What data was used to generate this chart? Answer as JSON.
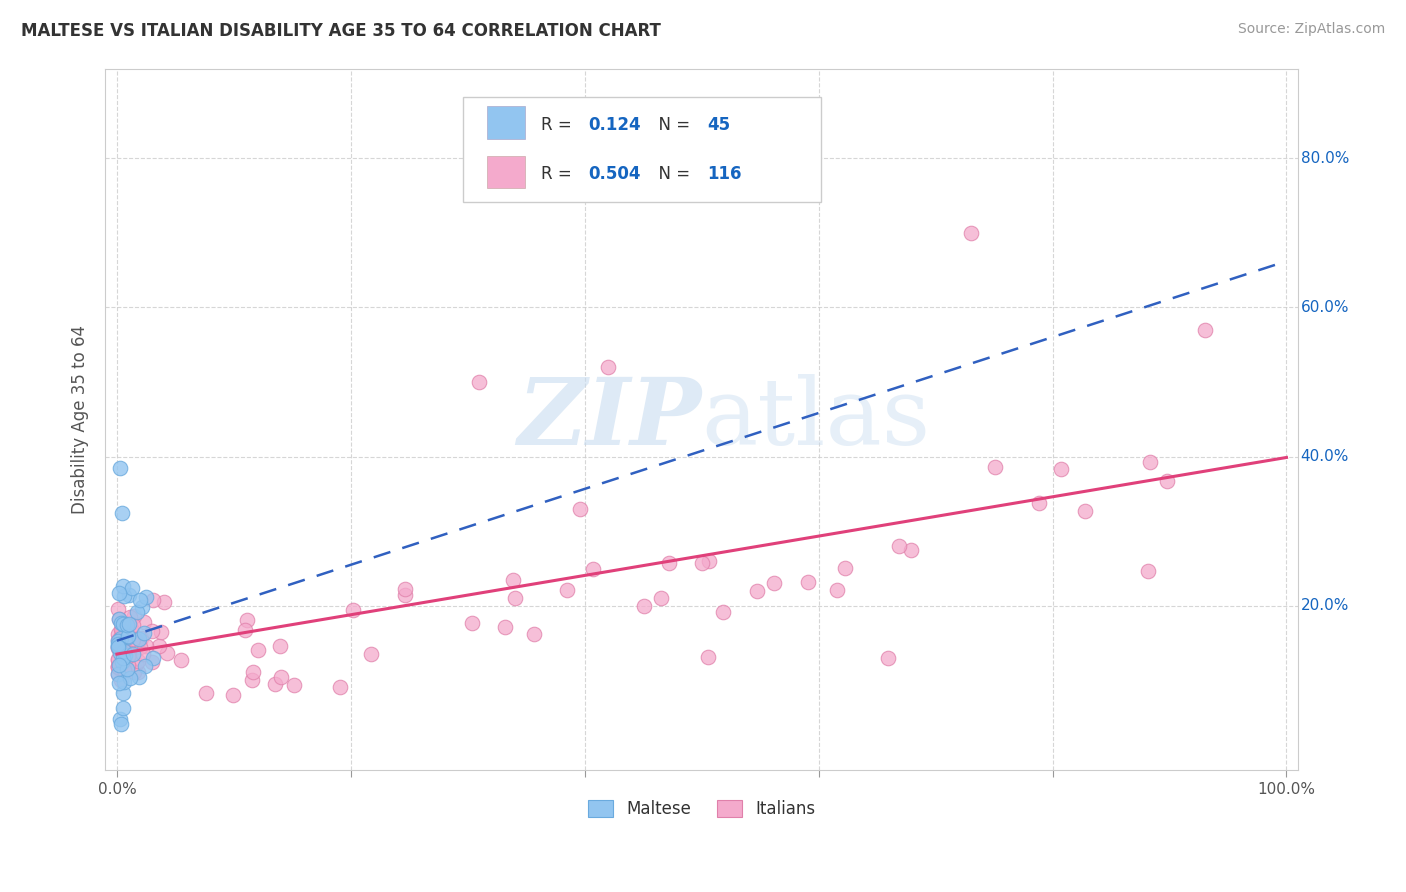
{
  "title": "MALTESE VS ITALIAN DISABILITY AGE 35 TO 64 CORRELATION CHART",
  "source": "Source: ZipAtlas.com",
  "ylabel": "Disability Age 35 to 64",
  "maltese_R": 0.124,
  "maltese_N": 45,
  "italian_R": 0.504,
  "italian_N": 116,
  "maltese_color": "#92C5F0",
  "maltese_edge": "#6AAADE",
  "italian_color": "#F4AACC",
  "italian_edge": "#E080AA",
  "trend_maltese_color": "#3060C0",
  "trend_italian_color": "#E0407A",
  "watermark_color": "#C8DCF0",
  "grid_color": "#CCCCCC",
  "background_color": "#FFFFFF",
  "legend_color": "#1565C0"
}
